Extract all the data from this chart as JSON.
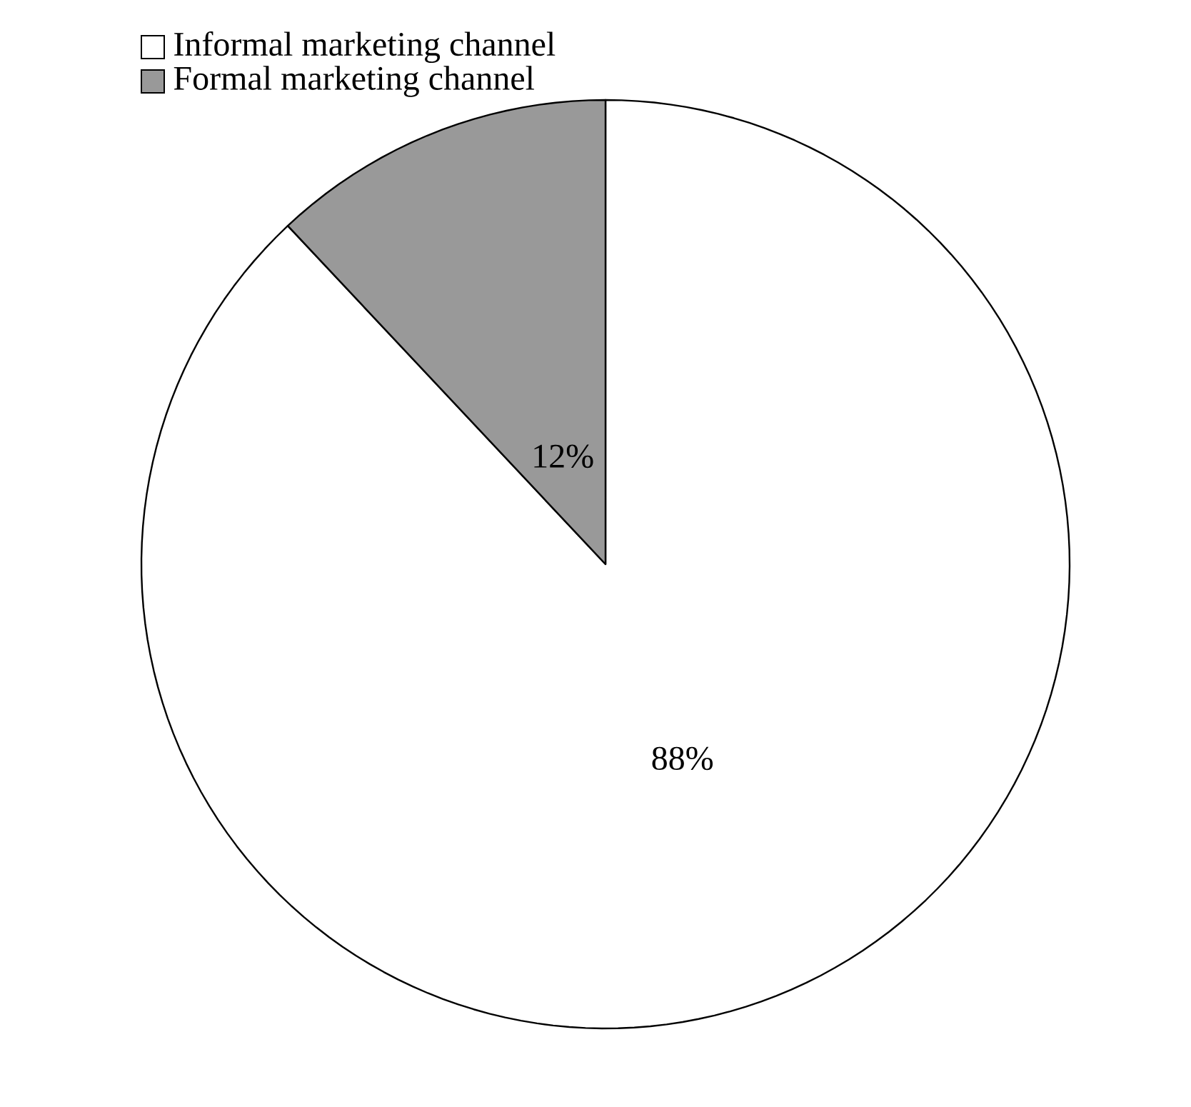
{
  "chart_data": {
    "type": "pie",
    "categories": [
      "Informal marketing channel",
      "Formal marketing channel"
    ],
    "values": [
      88,
      12
    ],
    "value_labels": [
      "88%",
      "12%"
    ],
    "colors": [
      "#ffffff",
      "#999999"
    ],
    "legend": "top left"
  }
}
